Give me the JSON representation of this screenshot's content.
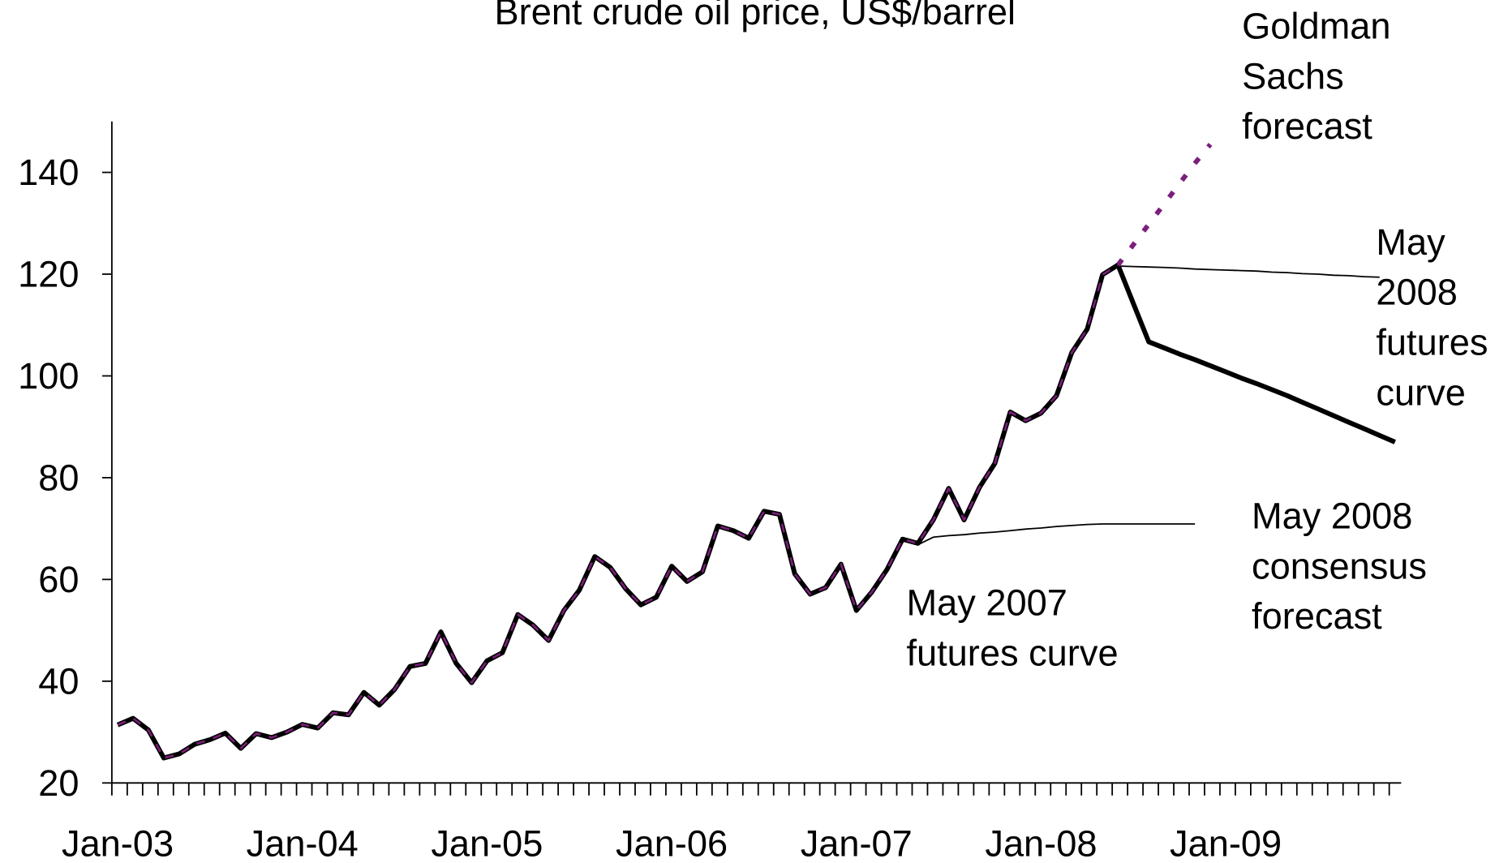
{
  "chart_data": {
    "type": "line",
    "title": "Brent crude oil price, US$/barrel",
    "categories": [
      "Jan-03",
      null,
      null,
      null,
      null,
      null,
      null,
      null,
      null,
      null,
      null,
      null,
      "Jan-04",
      null,
      null,
      null,
      null,
      null,
      null,
      null,
      null,
      null,
      null,
      null,
      "Jan-05",
      null,
      null,
      null,
      null,
      null,
      null,
      null,
      null,
      null,
      null,
      null,
      "Jan-06",
      null,
      null,
      null,
      null,
      null,
      null,
      null,
      null,
      null,
      null,
      null,
      "Jan-07",
      null,
      null,
      null,
      null,
      null,
      null,
      null,
      null,
      null,
      null,
      null,
      "Jan-08",
      null,
      null,
      null,
      null,
      null,
      null,
      null,
      null,
      null,
      null,
      null,
      "Jan-09",
      null,
      null,
      null,
      null,
      null,
      null,
      null,
      null,
      null,
      null,
      null
    ],
    "ylim": [
      20,
      150
    ],
    "yticks": [
      20,
      40,
      60,
      80,
      100,
      120,
      140
    ],
    "series": [
      {
        "name": "May 2007 futures curve",
        "color": "#000000",
        "line_style": "thin",
        "values": [
          null,
          null,
          null,
          null,
          null,
          null,
          null,
          null,
          null,
          null,
          null,
          null,
          null,
          null,
          null,
          null,
          null,
          null,
          null,
          null,
          null,
          null,
          null,
          null,
          null,
          null,
          null,
          null,
          null,
          null,
          null,
          null,
          null,
          null,
          null,
          null,
          null,
          null,
          null,
          null,
          null,
          null,
          null,
          null,
          null,
          null,
          null,
          null,
          null,
          null,
          null,
          null,
          66.8,
          68.3,
          68.6,
          68.8,
          69.1,
          69.3,
          69.6,
          69.9,
          70.1,
          70.4,
          70.6,
          70.8,
          70.9,
          70.9,
          70.9,
          70.9,
          70.9,
          70.9,
          70.9,
          null,
          null,
          null,
          null,
          null,
          null,
          null,
          null,
          null,
          null,
          null,
          null,
          null
        ]
      },
      {
        "name": "May 2008 futures curve",
        "color": "#000000",
        "line_style": "thin",
        "values": [
          null,
          null,
          null,
          null,
          null,
          null,
          null,
          null,
          null,
          null,
          null,
          null,
          null,
          null,
          null,
          null,
          null,
          null,
          null,
          null,
          null,
          null,
          null,
          null,
          null,
          null,
          null,
          null,
          null,
          null,
          null,
          null,
          null,
          null,
          null,
          null,
          null,
          null,
          null,
          null,
          null,
          null,
          null,
          null,
          null,
          null,
          null,
          null,
          null,
          null,
          null,
          null,
          null,
          null,
          null,
          null,
          null,
          null,
          null,
          null,
          null,
          null,
          null,
          null,
          null,
          121.6,
          121.5,
          121.4,
          121.3,
          121.2,
          121.0,
          120.9,
          120.8,
          120.7,
          120.6,
          120.4,
          120.3,
          120.1,
          120.0,
          119.8,
          119.7,
          119.5,
          119.4,
          null
        ]
      },
      {
        "name": "May 2008 consensus forecast",
        "color": "#000000",
        "line_style": "thick",
        "values": [
          null,
          null,
          null,
          null,
          null,
          null,
          null,
          null,
          null,
          null,
          null,
          null,
          null,
          null,
          null,
          null,
          null,
          null,
          null,
          null,
          null,
          null,
          null,
          null,
          null,
          null,
          null,
          null,
          null,
          null,
          null,
          null,
          null,
          null,
          null,
          null,
          null,
          null,
          null,
          null,
          null,
          null,
          null,
          null,
          null,
          null,
          null,
          null,
          null,
          null,
          null,
          null,
          null,
          null,
          null,
          null,
          null,
          null,
          null,
          null,
          null,
          null,
          null,
          null,
          null,
          121.8,
          114.2,
          106.7,
          105.5,
          104.3,
          103.2,
          102.0,
          100.8,
          99.6,
          98.5,
          97.3,
          96.1,
          94.8,
          93.5,
          92.2,
          90.9,
          89.6,
          88.3,
          87.0
        ]
      },
      {
        "name": "Goldman Sachs forecast",
        "color": "#7b1f7b",
        "line_style": "dotted",
        "values": [
          null,
          null,
          null,
          null,
          null,
          null,
          null,
          null,
          null,
          null,
          null,
          null,
          null,
          null,
          null,
          null,
          null,
          null,
          null,
          null,
          null,
          null,
          null,
          null,
          null,
          null,
          null,
          null,
          null,
          null,
          null,
          null,
          null,
          null,
          null,
          null,
          null,
          null,
          null,
          null,
          null,
          null,
          null,
          null,
          null,
          null,
          null,
          null,
          null,
          null,
          null,
          null,
          null,
          null,
          null,
          null,
          null,
          null,
          null,
          null,
          null,
          null,
          null,
          null,
          null,
          121.8,
          125.8,
          129.8,
          133.8,
          137.8,
          141.8,
          145.5,
          null,
          null,
          null,
          null,
          null,
          null,
          null,
          null,
          null,
          null,
          null,
          null
        ]
      },
      {
        "color": "#000000",
        "overlay_color": "#7b1f7b",
        "line_style": "thick",
        "values": [
          31.4,
          32.7,
          30.4,
          24.9,
          25.7,
          27.6,
          28.5,
          29.8,
          26.8,
          29.7,
          28.9,
          30.0,
          31.5,
          30.8,
          33.8,
          33.4,
          37.8,
          35.3,
          38.4,
          42.9,
          43.5,
          49.7,
          43.5,
          39.7,
          44.0,
          45.6,
          53.1,
          51.0,
          48.0,
          53.9,
          57.9,
          64.5,
          62.4,
          58.2,
          55.0,
          56.5,
          62.6,
          59.6,
          61.5,
          70.5,
          69.6,
          68.1,
          73.4,
          72.8,
          61.1,
          57.1,
          58.4,
          63.0,
          53.9,
          57.5,
          62.0,
          67.9,
          67.1,
          71.7,
          77.9,
          71.7,
          78.1,
          82.8,
          92.9,
          91.2,
          92.7,
          96.1,
          104.6,
          109.2,
          119.9,
          121.8,
          null,
          null,
          null,
          null,
          null,
          null,
          null,
          null,
          null,
          null,
          null,
          null,
          null,
          null,
          null,
          null,
          null,
          null
        ]
      }
    ]
  }
}
